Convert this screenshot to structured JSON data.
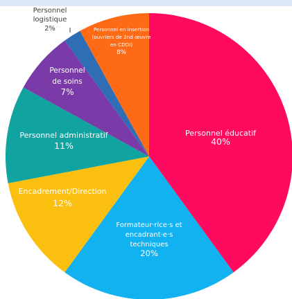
{
  "chart_data": {
    "type": "pie",
    "title": "",
    "slices": [
      {
        "name": "Personnel éducatif",
        "value": 40,
        "value_label": "40%",
        "color": "#ff0a5f",
        "label_lines": [
          "Personnel éducatif"
        ]
      },
      {
        "name": "Formateur·rice·s et encadrant·e·s techniques",
        "value": 20,
        "value_label": "20%",
        "color": "#12b2f0",
        "label_lines": [
          "Formateur·rice·s et",
          "encadrant·e·s",
          "techniques"
        ]
      },
      {
        "name": "Encadrement/Direction",
        "value": 12,
        "value_label": "12%",
        "color": "#fbc00f",
        "label_lines": [
          "Encadrement/Direction"
        ]
      },
      {
        "name": "Personnel administratif",
        "value": 11,
        "value_label": "11%",
        "color": "#10a39f",
        "label_lines": [
          "Personnel administratif"
        ]
      },
      {
        "name": "Personnel de soins",
        "value": 7,
        "value_label": "7%",
        "color": "#7a3aa8",
        "label_lines": [
          "Personnel",
          "de soins"
        ]
      },
      {
        "name": "Personnel logistique",
        "value": 2,
        "value_label": "2%",
        "color": "#2f6eb5",
        "label_lines": [
          "Personnel",
          "logistique"
        ]
      },
      {
        "name": "Personnel en insertion (ouvriers de 2nd œuvre en CDDI)",
        "value": 8,
        "value_label": "8%",
        "color": "#ff6a16",
        "label_lines": [
          "Personnel en insertion",
          "(ouvriers de 2nd œuvre",
          "en CDDI)"
        ]
      }
    ]
  }
}
